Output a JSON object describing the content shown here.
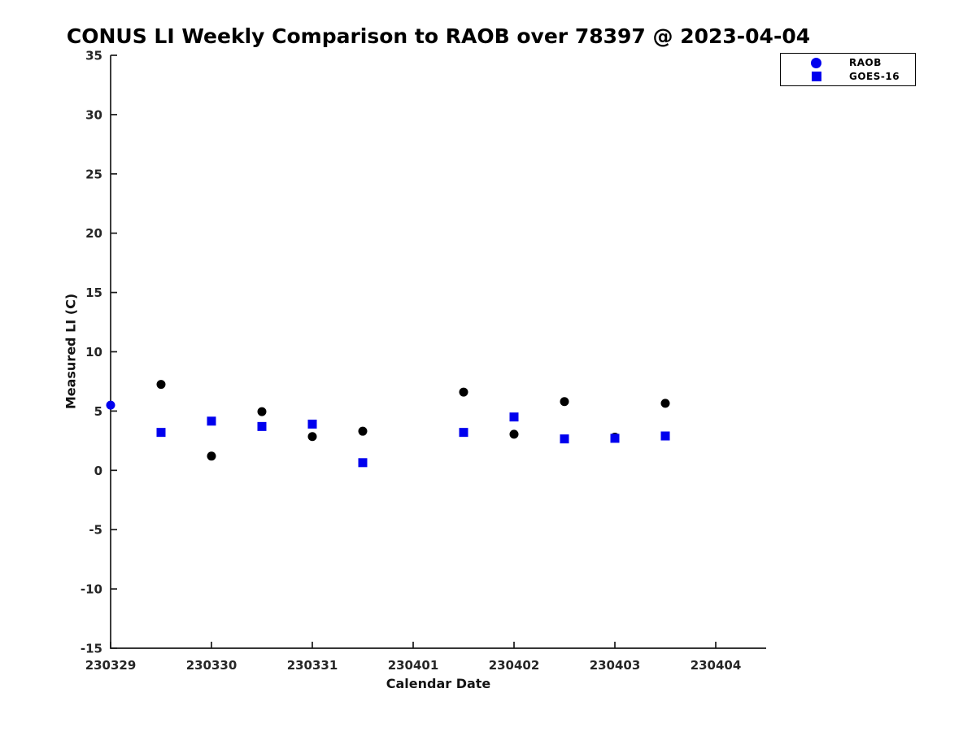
{
  "figure": {
    "background": "#ffffff"
  },
  "chart_data": {
    "type": "scatter",
    "title": "CONUS LI Weekly Comparison to RAOB over 78397 @ 2023-04-04",
    "xlabel": "Calendar Date",
    "ylabel": "Measured LI (C)",
    "x_tick_labels": [
      "230329",
      "230330",
      "230331",
      "230401",
      "230402",
      "230403",
      "230404"
    ],
    "y_ticks": [
      35,
      30,
      25,
      20,
      15,
      10,
      5,
      0,
      -5,
      -10,
      -15
    ],
    "xlim": [
      0,
      6.5
    ],
    "ylim": [
      -15,
      35
    ],
    "grid": false,
    "legend_position": "top-right",
    "axis_color": "#1a1a1a",
    "tick_label_color": "#262626",
    "title_color": "#000000",
    "series": [
      {
        "name": "RAOB",
        "marker": "circle",
        "color": "#000000",
        "legend_color": "#0000ee",
        "points": [
          {
            "x": 0.0,
            "y": 5.5,
            "color": "#0000ee"
          },
          {
            "x": 0.5,
            "y": 7.25
          },
          {
            "x": 1.0,
            "y": 1.2
          },
          {
            "x": 1.5,
            "y": 4.95
          },
          {
            "x": 2.0,
            "y": 2.85
          },
          {
            "x": 2.5,
            "y": 3.3
          },
          {
            "x": 3.5,
            "y": 6.6
          },
          {
            "x": 4.0,
            "y": 3.05
          },
          {
            "x": 4.5,
            "y": 5.8
          },
          {
            "x": 5.0,
            "y": 2.8
          },
          {
            "x": 5.5,
            "y": 5.65
          }
        ]
      },
      {
        "name": "GOES-16",
        "marker": "square",
        "color": "#0000ee",
        "legend_color": "#0000ee",
        "points": [
          {
            "x": 0.5,
            "y": 3.2
          },
          {
            "x": 1.0,
            "y": 4.15
          },
          {
            "x": 1.5,
            "y": 3.7
          },
          {
            "x": 2.0,
            "y": 3.9
          },
          {
            "x": 2.5,
            "y": 0.65
          },
          {
            "x": 3.5,
            "y": 3.2
          },
          {
            "x": 4.0,
            "y": 4.5
          },
          {
            "x": 4.5,
            "y": 2.65
          },
          {
            "x": 5.0,
            "y": 2.7
          },
          {
            "x": 5.5,
            "y": 2.9
          }
        ]
      }
    ]
  }
}
